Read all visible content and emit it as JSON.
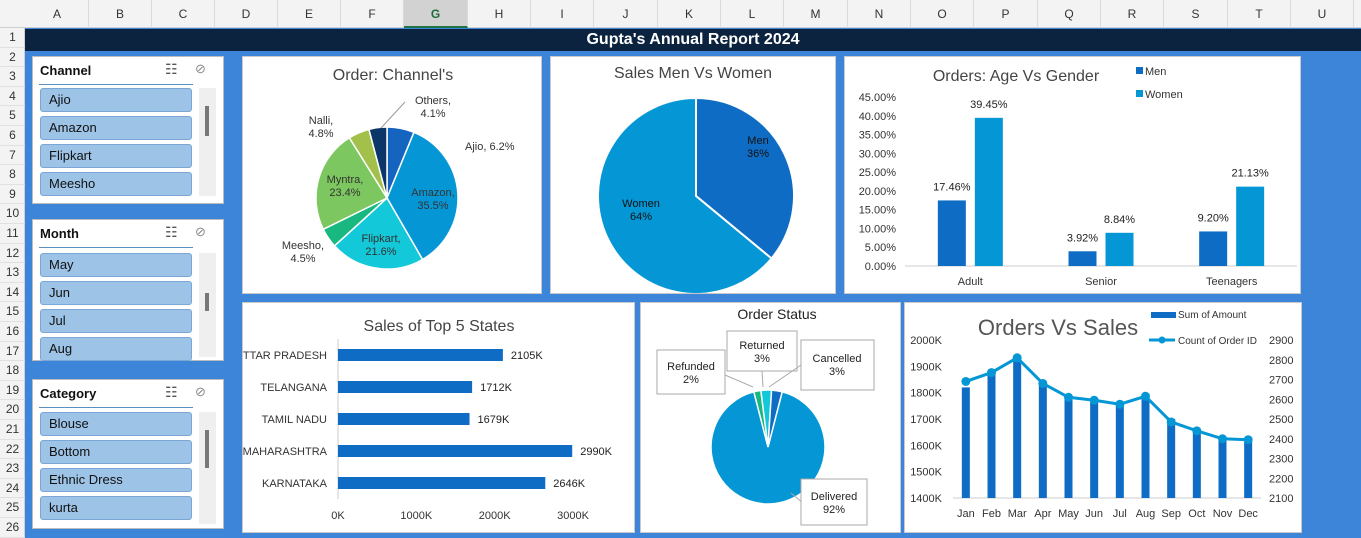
{
  "columns": [
    "A",
    "B",
    "C",
    "D",
    "E",
    "F",
    "G",
    "H",
    "I",
    "J",
    "K",
    "L",
    "M",
    "N",
    "O",
    "P",
    "Q",
    "R",
    "S",
    "T",
    "U"
  ],
  "selected_column": "G",
  "rows": [
    "1",
    "2",
    "3",
    "4",
    "5",
    "6",
    "7",
    "8",
    "9",
    "10",
    "11",
    "12",
    "13",
    "14",
    "15",
    "16",
    "17",
    "18",
    "19",
    "20",
    "21",
    "22",
    "23",
    "24",
    "25",
    "26"
  ],
  "report_title": "Gupta's Annual Report 2024",
  "slicers": {
    "channel": {
      "title": "Channel",
      "items": [
        "Ajio",
        "Amazon",
        "Flipkart",
        "Meesho"
      ]
    },
    "month": {
      "title": "Month",
      "items": [
        "May",
        "Jun",
        "Jul",
        "Aug"
      ]
    },
    "category": {
      "title": "Category",
      "items": [
        "Blouse",
        "Bottom",
        "Ethnic Dress",
        "kurta"
      ]
    }
  },
  "colors": {
    "sheet_bg": "#3d85d8",
    "title_bg": "#0c2340",
    "bar_dark": "#0f6cc4",
    "bar_light": "#0597d5"
  },
  "chart_data": [
    {
      "id": "channel",
      "type": "pie",
      "title": "Order: Channel's",
      "slices": [
        {
          "label": "Ajio, 6.2%",
          "value": 6.2,
          "color": "#1565c0"
        },
        {
          "label": "Amazon,\n35.5%",
          "value": 35.5,
          "color": "#0597d5"
        },
        {
          "label": "Flipkart,\n21.6%",
          "value": 21.6,
          "color": "#13c8d8"
        },
        {
          "label": "Meesho,\n4.5%",
          "value": 4.5,
          "color": "#18b880"
        },
        {
          "label": "Myntra,\n23.4%",
          "value": 23.4,
          "color": "#7cc75f"
        },
        {
          "label": "Nalli,\n4.8%",
          "value": 4.8,
          "color": "#a3c04a"
        },
        {
          "label": "Others,\n4.1%",
          "value": 4.1,
          "color": "#0c3668"
        }
      ]
    },
    {
      "id": "gender",
      "type": "pie",
      "title": "Sales Men Vs Women",
      "slices": [
        {
          "label": "Men\n36%",
          "value": 36,
          "color": "#0f6cc4"
        },
        {
          "label": "Women\n64%",
          "value": 64,
          "color": "#0597d5"
        }
      ]
    },
    {
      "id": "age",
      "type": "bar",
      "title": "Orders: Age Vs Gender",
      "categories": [
        "Adult",
        "Senior",
        "Teenagers"
      ],
      "series": [
        {
          "name": "Men",
          "values": [
            17.46,
            3.92,
            9.2
          ],
          "labels": [
            "17.46%",
            "3.92%",
            "9.20%"
          ]
        },
        {
          "name": "Women",
          "values": [
            39.45,
            8.84,
            21.13
          ],
          "labels": [
            "39.45%",
            "8.84%",
            "21.13%"
          ]
        }
      ],
      "yticks": [
        "0.00%",
        "5.00%",
        "10.00%",
        "15.00%",
        "20.00%",
        "25.00%",
        "30.00%",
        "35.00%",
        "40.00%",
        "45.00%"
      ],
      "ylim": [
        0,
        45
      ],
      "legend": "top-right"
    },
    {
      "id": "states",
      "type": "bar",
      "orientation": "horizontal",
      "title": "Sales of Top 5 States",
      "categories": [
        "UTTAR PRADESH",
        "TELANGANA",
        "TAMIL NADU",
        "MAHARASHTRA",
        "KARNATAKA"
      ],
      "values": [
        2105,
        1712,
        1679,
        2990,
        2646
      ],
      "labels": [
        "2105K",
        "1712K",
        "1679K",
        "2990K",
        "2646K"
      ],
      "xticks": [
        "0K",
        "1000K",
        "2000K",
        "3000K"
      ],
      "xlim": [
        0,
        3000
      ]
    },
    {
      "id": "status",
      "type": "pie",
      "title": "Order Status",
      "slices": [
        {
          "label": "Delivered\n92%",
          "value": 92,
          "color": "#0597d5"
        },
        {
          "label": "Refunded\n2%",
          "value": 2,
          "color": "#18b880"
        },
        {
          "label": "Returned\n3%",
          "value": 3,
          "color": "#13c8d8"
        },
        {
          "label": "Cancelled\n3%",
          "value": 3,
          "color": "#0f6cc4"
        }
      ]
    },
    {
      "id": "orders_sales",
      "type": "bar",
      "combo": "bar+line",
      "title": "Orders Vs Sales",
      "categories": [
        "Jan",
        "Feb",
        "Mar",
        "Apr",
        "May",
        "Jun",
        "Jul",
        "Aug",
        "Sep",
        "Oct",
        "Nov",
        "Dec"
      ],
      "series": [
        {
          "name": "Sum of Amount",
          "type": "bar",
          "axis": "left",
          "values": [
            1820,
            1875,
            1920,
            1840,
            1790,
            1770,
            1760,
            1795,
            1700,
            1660,
            1620,
            1615
          ]
        },
        {
          "name": "Count of Order ID",
          "type": "line",
          "axis": "right",
          "values": [
            2690,
            2735,
            2810,
            2680,
            2610,
            2595,
            2575,
            2615,
            2485,
            2440,
            2400,
            2395
          ]
        }
      ],
      "yticks_left": [
        "1400K",
        "1500K",
        "1600K",
        "1700K",
        "1800K",
        "1900K",
        "2000K"
      ],
      "ylim_left": [
        1400,
        2000
      ],
      "yticks_right": [
        "2100",
        "2200",
        "2300",
        "2400",
        "2500",
        "2600",
        "2700",
        "2800",
        "2900"
      ],
      "ylim_right": [
        2100,
        2900
      ],
      "legend": "top-right"
    }
  ]
}
